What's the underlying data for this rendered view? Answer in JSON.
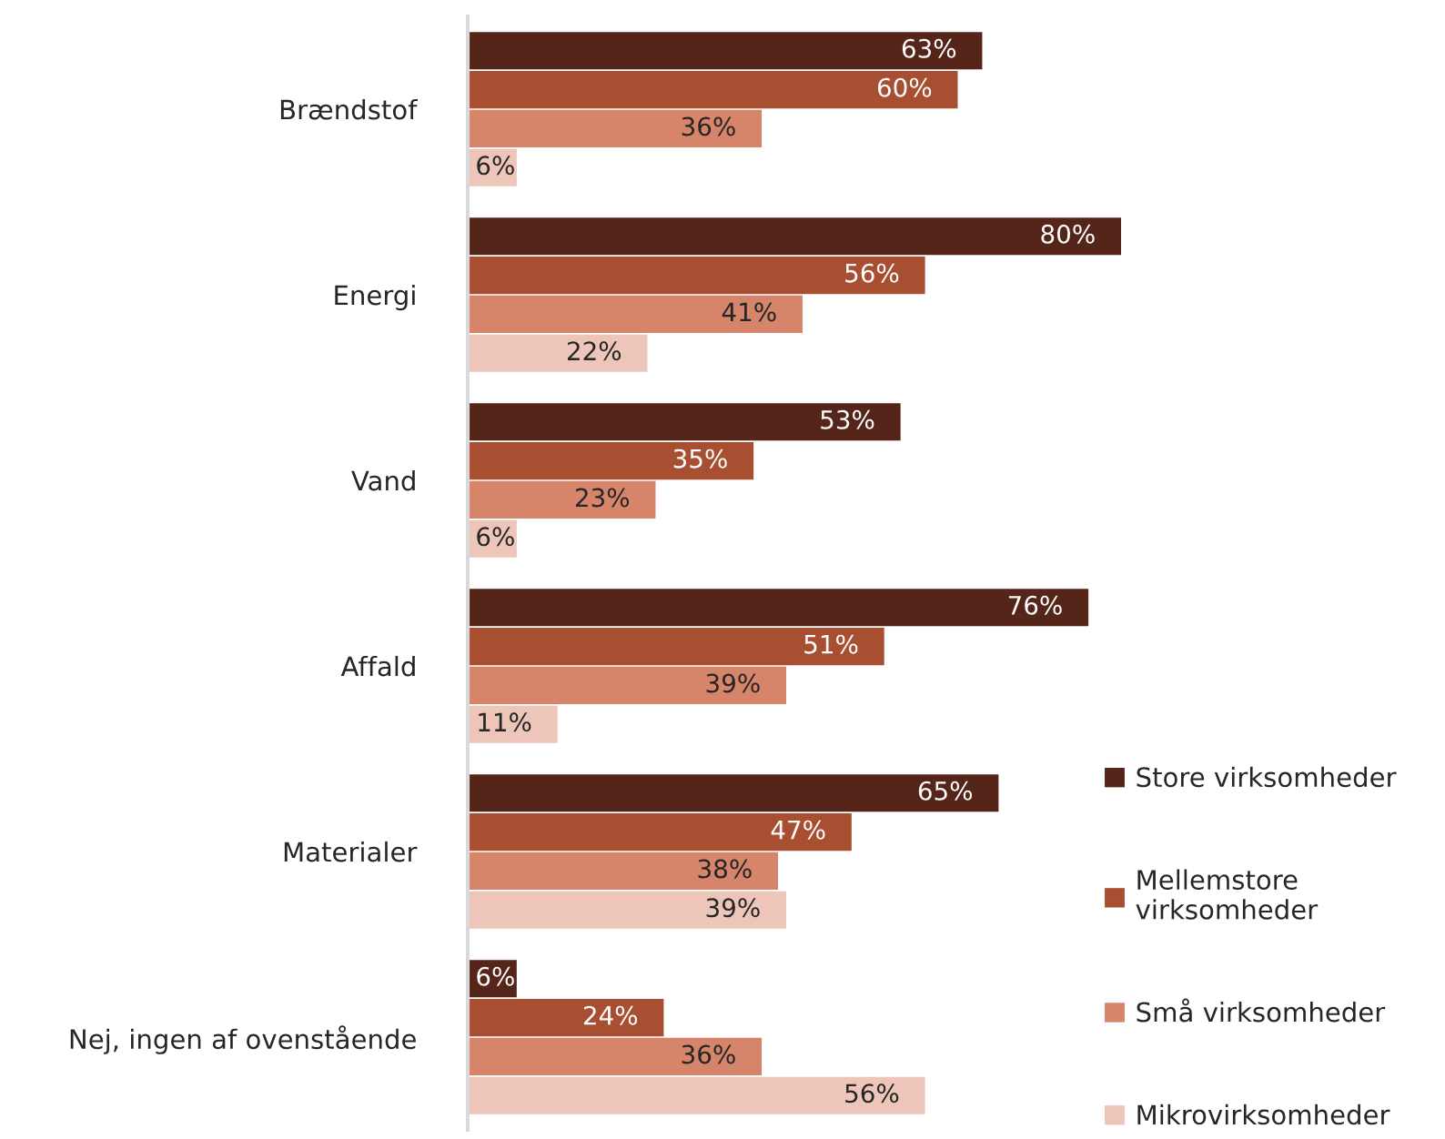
{
  "chart_data": {
    "type": "bar",
    "orientation": "horizontal",
    "tick_labels": "y",
    "legend": "bottom right",
    "categories": [
      "Brændstof",
      "Energi",
      "Vand",
      "Affald",
      "Materialer",
      "Nej, ingen af ovenstående"
    ],
    "series": [
      {
        "name": "Store virksomheder",
        "color": "#55251a",
        "values": [
          63,
          80,
          53,
          76,
          65,
          6
        ],
        "value_labels": [
          "63%",
          "80%",
          "53%",
          "76%",
          "65%",
          "6%"
        ]
      },
      {
        "name": "Mellemstore\nvirksomheder",
        "color": "#a84f32",
        "values": [
          60,
          56,
          35,
          51,
          47,
          24
        ],
        "value_labels": [
          "60%",
          "56%",
          "35%",
          "51%",
          "47%",
          "24%"
        ]
      },
      {
        "name": "Små virksomheder",
        "color": "#d6856a",
        "values": [
          36,
          41,
          23,
          39,
          38,
          36
        ],
        "value_labels": [
          "36%",
          "41%",
          "23%",
          "39%",
          "38%",
          "36%"
        ]
      },
      {
        "name": "Mikrovirksomheder",
        "color": "#eec6b9",
        "values": [
          6,
          22,
          6,
          11,
          39,
          56
        ],
        "value_labels": [
          "6%",
          "22%",
          "6%",
          "11%",
          "39%",
          "56%"
        ]
      }
    ]
  }
}
